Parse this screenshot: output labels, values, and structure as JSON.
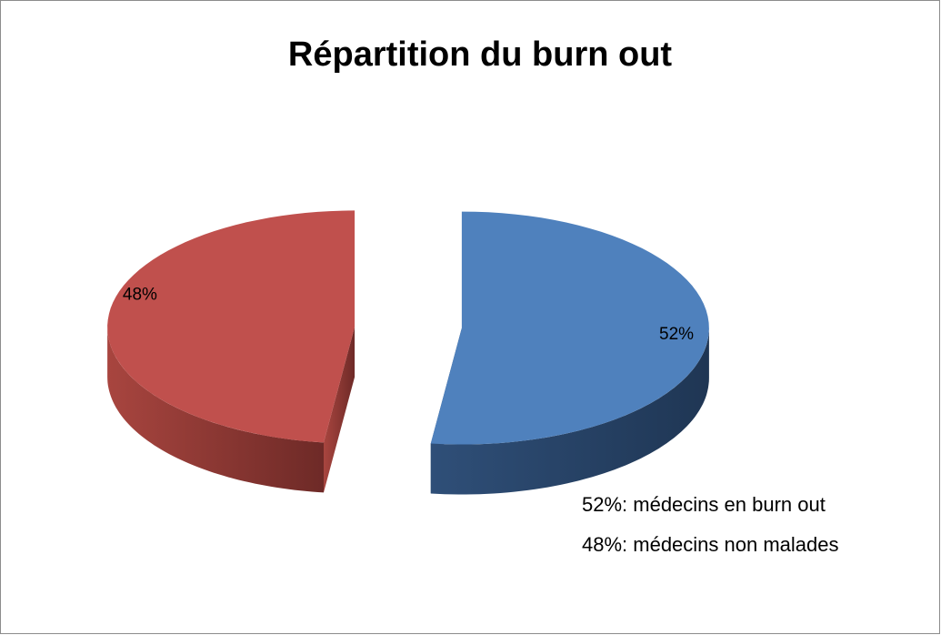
{
  "chart_data": {
    "type": "pie",
    "title": "Répartition du burn out",
    "values": [
      52,
      48
    ],
    "value_labels": [
      "52%",
      "48%"
    ],
    "colors": [
      "#4f81bd",
      "#c0504d"
    ],
    "annotations": [
      "52%: médecins en burn out",
      "48%: médecins non malades"
    ]
  }
}
